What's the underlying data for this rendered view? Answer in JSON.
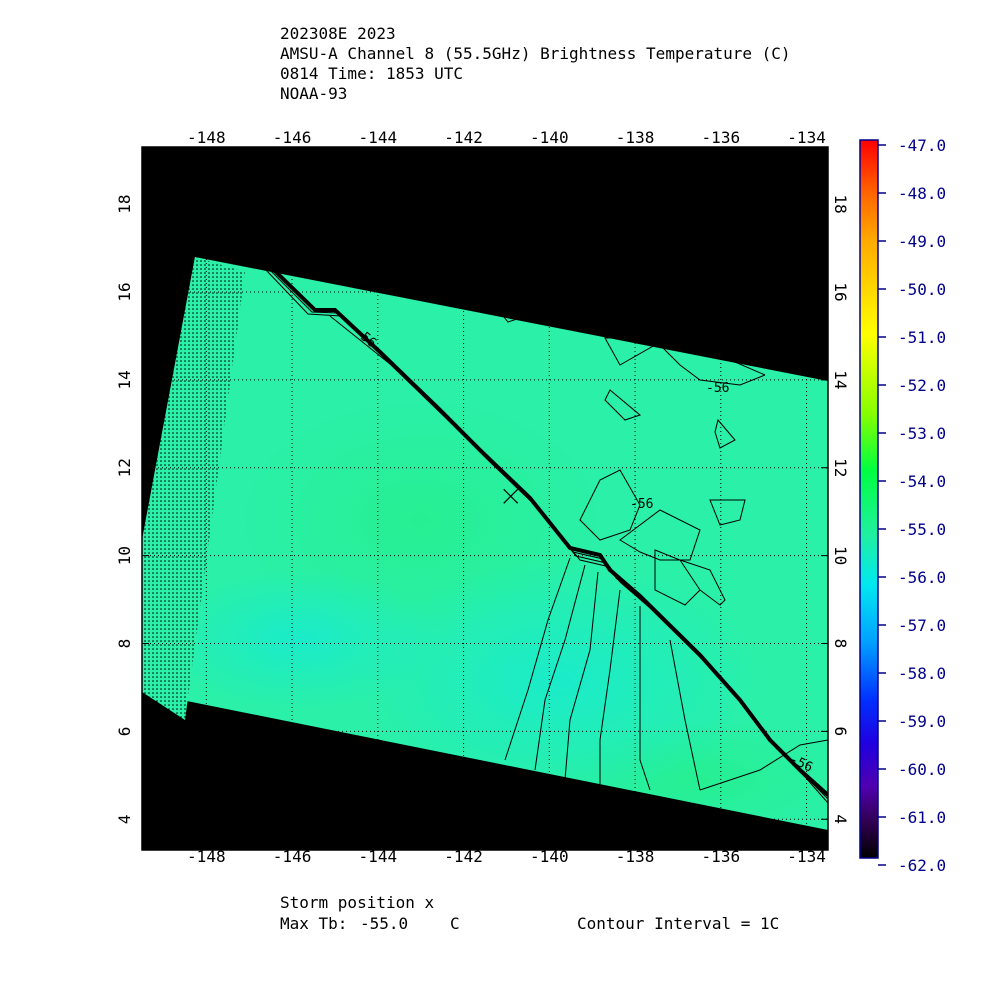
{
  "header": {
    "line1": "202308E 2023",
    "line2": "AMSU-A Channel 8 (55.5GHz) Brightness Temperature (C)",
    "line3": "0814 Time: 1853 UTC",
    "line4": "NOAA-93"
  },
  "map": {
    "lon_ticks": [
      "-148",
      "-146",
      "-144",
      "-142",
      "-140",
      "-138",
      "-136",
      "-134"
    ],
    "lat_ticks": [
      "4",
      "6",
      "8",
      "10",
      "12",
      "14",
      "16",
      "18"
    ],
    "lon_range": [
      -149.5,
      -133.5
    ],
    "lat_range": [
      3.3,
      19.3
    ],
    "storm_marker": "x-mark-icon",
    "storm_position": {
      "lon": -140.9,
      "lat": 11.35
    },
    "contour_labels": [
      "-56",
      "-56",
      "-56",
      "-56"
    ],
    "field_color": "#2af0a8",
    "background_color": "#000000"
  },
  "colorbar": {
    "labels": [
      "-47.0",
      "-48.0",
      "-49.0",
      "-50.0",
      "-51.0",
      "-52.0",
      "-53.0",
      "-54.0",
      "-55.0",
      "-56.0",
      "-57.0",
      "-58.0",
      "-59.0",
      "-60.0",
      "-61.0",
      "-62.0"
    ],
    "colors": [
      "#ff0000",
      "#ff6000",
      "#ff9a00",
      "#ffcc00",
      "#ffff00",
      "#a8ff00",
      "#2aff00",
      "#00f070",
      "#20f0a0",
      "#00e8e8",
      "#00a8ff",
      "#0050ff",
      "#0000ff",
      "#5000c8",
      "#48009a",
      "#000000"
    ]
  },
  "footer": {
    "storm_position_label": "Storm position x",
    "max_tb_label": "Max Tb:",
    "max_tb_value": "-55.0",
    "max_tb_unit": "C",
    "contour_interval": "Contour Interval = 1C"
  }
}
